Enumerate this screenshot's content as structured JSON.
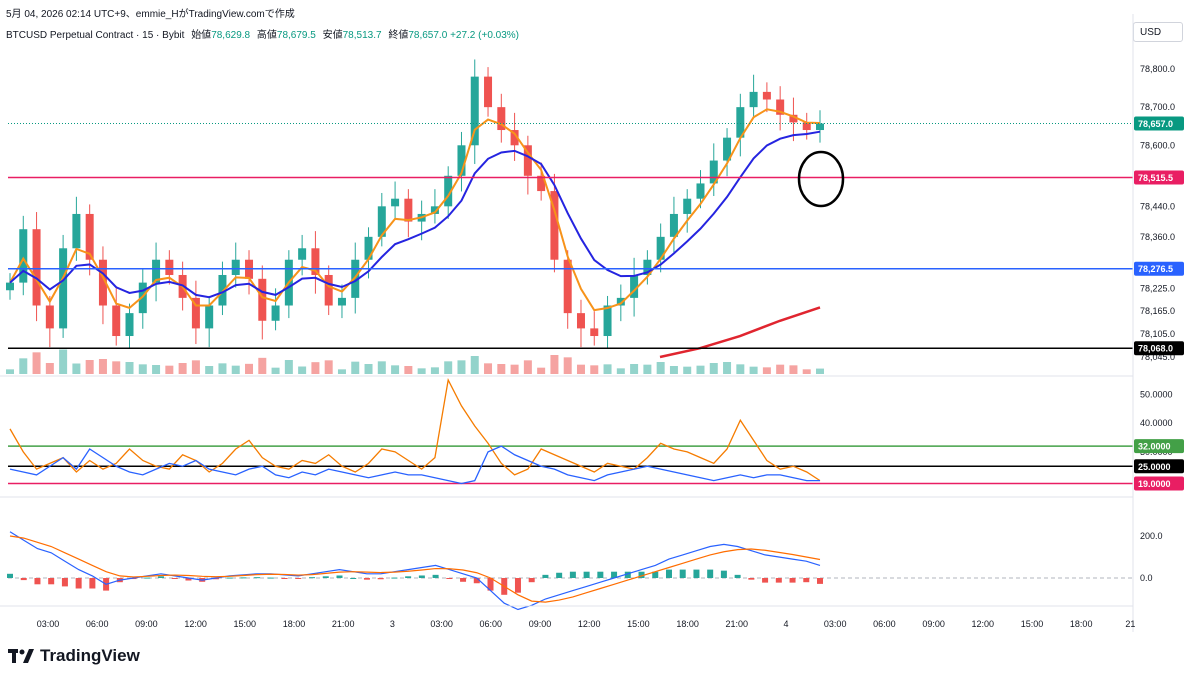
{
  "header": {
    "timestamp_line": "5月 04, 2026 02:14 UTC+9、emmie_HがTradingView.comで作成",
    "symbol": "BTCUSD Perpetual Contract · 15 · Bybit",
    "open_label": "始値",
    "open": "78,629.8",
    "high_label": "高値",
    "high": "78,679.5",
    "low_label": "安値",
    "low": "78,513.7",
    "close_label": "終値",
    "close": "78,657.0",
    "change": "+27.2 (+0.03%)"
  },
  "currency": "USD",
  "brand": {
    "name": "TradingView"
  },
  "colors": {
    "up": "#26a69a",
    "down": "#ef5350",
    "vol_up": "#93d3cb",
    "vol_down": "#f5a3a1",
    "price_line": "#089981",
    "resistance": "#e91e63",
    "support": "#2962ff",
    "floor": "#000000",
    "ema_fast": "#f7931a",
    "ema_slow": "#2524e0",
    "ma_long": "#e0252f",
    "osc_fast": "#f57c00",
    "osc_slow": "#2962ff",
    "osc_upper": "#43a047",
    "macd_fast": "#2962ff",
    "macd_slow": "#ff6d00"
  },
  "chart_data": [
    {
      "type": "candlestick",
      "title": "BTCUSD Perpetual Contract · 15 · Bybit",
      "x_ticks": [
        "03:00",
        "06:00",
        "09:00",
        "12:00",
        "15:00",
        "18:00",
        "21:00",
        "3",
        "03:00",
        "06:00",
        "09:00",
        "12:00",
        "15:00",
        "18:00",
        "21:00",
        "4",
        "03:00",
        "06:00",
        "09:00",
        "12:00",
        "15:00",
        "18:00",
        "21"
      ],
      "y_ticks": [
        "78,800.0",
        "78,700.0",
        "78,600.0",
        "78,440.0",
        "78,360.0",
        "78,225.0",
        "78,165.0",
        "78,105.0",
        "78,045.0"
      ],
      "price_labels": [
        {
          "id": "last",
          "value": "78,657.0",
          "color": "#089981",
          "style": "dotted"
        },
        {
          "id": "resistance",
          "value": "78,515.5",
          "color": "#e91e63",
          "style": "solid"
        },
        {
          "id": "support",
          "value": "78,276.5",
          "color": "#2962ff",
          "style": "solid"
        },
        {
          "id": "floor",
          "value": "78,068.0",
          "color": "#000000",
          "style": "solid"
        }
      ],
      "annotations": [
        {
          "type": "ellipse",
          "color": "#000000",
          "near": "78,515.5"
        }
      ],
      "close_path": [
        78240,
        78380,
        78180,
        78120,
        78330,
        78420,
        78300,
        78180,
        78100,
        78160,
        78240,
        78300,
        78260,
        78200,
        78120,
        78180,
        78260,
        78300,
        78250,
        78140,
        78180,
        78300,
        78330,
        78260,
        78180,
        78200,
        78300,
        78360,
        78440,
        78460,
        78400,
        78420,
        78440,
        78520,
        78600,
        78780,
        78700,
        78640,
        78600,
        78520,
        78480,
        78300,
        78160,
        78120,
        78100,
        78180,
        78200,
        78260,
        78300,
        78360,
        78420,
        78460,
        78500,
        78560,
        78620,
        78700,
        78740,
        78720,
        78680,
        78660,
        78640,
        78657
      ]
    },
    {
      "type": "line",
      "title": "oscillator",
      "y_ticks": [
        "50.0000",
        "40.0000",
        "30.0000"
      ],
      "levels": [
        {
          "value": "32.0000",
          "color": "#43a047"
        },
        {
          "value": "25.0000",
          "color": "#000000"
        },
        {
          "value": "19.0000",
          "color": "#e91e63"
        }
      ],
      "series": [
        {
          "color": "#f57c00",
          "values": [
            38,
            30,
            24,
            26,
            28,
            23,
            27,
            24,
            26,
            31,
            27,
            25,
            24,
            29,
            27,
            23,
            26,
            31,
            34,
            28,
            25,
            24,
            27,
            26,
            29,
            25,
            23,
            26,
            31,
            30,
            27,
            24,
            28,
            55,
            46,
            39,
            33,
            26,
            22,
            24,
            31,
            29,
            27,
            25,
            23,
            26,
            25,
            24,
            28,
            33,
            31,
            30,
            28,
            26,
            31,
            41,
            34,
            27,
            24,
            25,
            23,
            20
          ]
        },
        {
          "color": "#2962ff",
          "values": [
            24,
            23,
            22,
            25,
            28,
            24,
            31,
            28,
            25,
            23,
            22,
            24,
            26,
            25,
            27,
            24,
            23,
            22,
            24,
            25,
            22,
            21,
            23,
            22,
            24,
            23,
            22,
            21,
            22,
            23,
            22,
            22,
            21,
            20,
            19,
            20,
            30,
            32,
            29,
            27,
            25,
            24,
            22,
            21,
            20,
            22,
            23,
            24,
            25,
            24,
            23,
            22,
            21,
            20,
            21,
            22,
            21,
            22,
            22,
            21,
            20,
            20
          ]
        }
      ]
    },
    {
      "type": "bar",
      "title": "MACD",
      "y_ticks": [
        "200.0",
        "0.0"
      ],
      "series": [
        {
          "name": "",
          "color": "#2962ff",
          "values": [
            220,
            180,
            140,
            120,
            80,
            40,
            10,
            -30,
            -10,
            0,
            10,
            20,
            10,
            0,
            -10,
            0,
            10,
            15,
            20,
            20,
            15,
            10,
            20,
            30,
            40,
            30,
            20,
            20,
            30,
            40,
            50,
            60,
            40,
            20,
            0,
            -60,
            -120,
            -150,
            -130,
            -100,
            -80,
            -60,
            -40,
            -20,
            0,
            20,
            40,
            60,
            90,
            110,
            130,
            150,
            160,
            150,
            130,
            110,
            100,
            90,
            80,
            60
          ]
        },
        {
          "name": "",
          "color": "#ff6d00",
          "values": [
            200,
            190,
            170,
            150,
            120,
            90,
            60,
            30,
            10,
            5,
            8,
            12,
            14,
            12,
            8,
            6,
            8,
            12,
            16,
            18,
            17,
            14,
            16,
            22,
            28,
            30,
            28,
            26,
            28,
            32,
            38,
            45,
            44,
            38,
            25,
            0,
            -40,
            -80,
            -110,
            -115,
            -105,
            -90,
            -70,
            -50,
            -30,
            -10,
            10,
            30,
            50,
            70,
            90,
            110,
            125,
            135,
            138,
            132,
            122,
            112,
            100,
            88
          ]
        }
      ]
    }
  ]
}
